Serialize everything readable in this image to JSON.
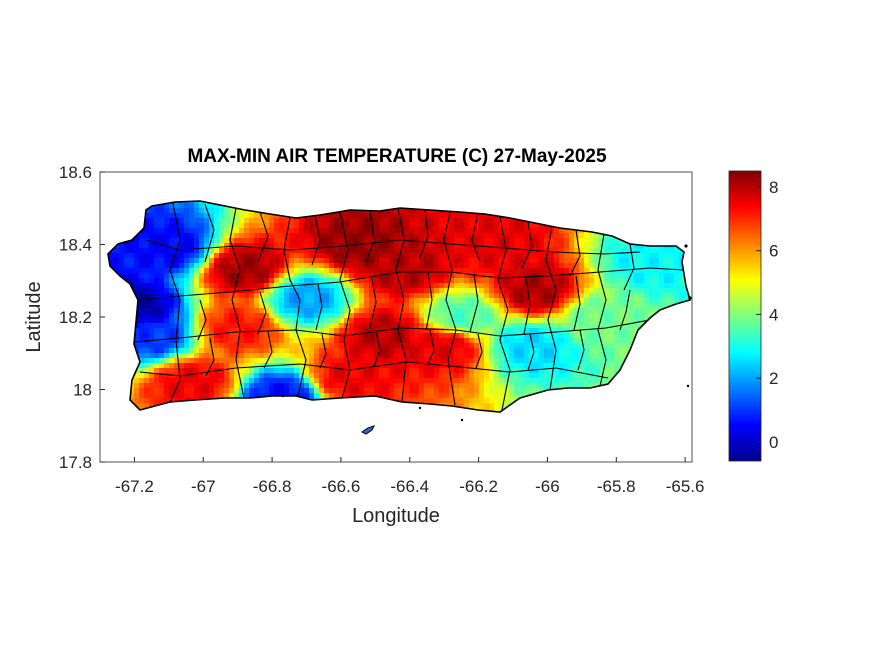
{
  "map": {
    "title": "MAX-MIN AIR TEMPERATURE (C) 27-May-2025",
    "xlabel": "Longitude",
    "ylabel": "Latitude",
    "xlim": [
      -67.3,
      -65.58
    ],
    "ylim": [
      17.8,
      18.6
    ],
    "x_ticks": [
      -67.2,
      -67.0,
      -66.8,
      -66.6,
      -66.4,
      -66.2,
      -66.0,
      -65.8,
      -65.6
    ],
    "x_tick_labels": [
      "-67.2",
      "-67",
      "-66.8",
      "-66.6",
      "-66.4",
      "-66.2",
      "-66",
      "-65.8",
      "-65.6"
    ],
    "y_ticks": [
      17.8,
      18.0,
      18.2,
      18.4,
      18.6
    ],
    "y_tick_labels": [
      "17.8",
      "18",
      "18.2",
      "18.4",
      "18.6"
    ],
    "colorbar": {
      "colormap": "jet",
      "range": [
        -0.6,
        8.5
      ],
      "ticks": [
        0,
        2,
        4,
        6,
        8
      ],
      "tick_labels": [
        "0",
        "2",
        "4",
        "6",
        "8"
      ]
    },
    "hotspots": [
      {
        "lon": -66.88,
        "lat": 18.33,
        "value": 8.2
      },
      {
        "lon": -66.55,
        "lat": 18.4,
        "value": 8.3
      },
      {
        "lon": -66.42,
        "lat": 18.33,
        "value": 8.0
      },
      {
        "lon": -66.03,
        "lat": 18.27,
        "value": 8.1
      },
      {
        "lon": -66.15,
        "lat": 18.4,
        "value": 7.6
      },
      {
        "lon": -66.47,
        "lat": 18.15,
        "value": 8.0
      },
      {
        "lon": -66.3,
        "lat": 18.12,
        "value": 7.6
      },
      {
        "lon": -66.58,
        "lat": 18.03,
        "value": 7.5
      },
      {
        "lon": -67.03,
        "lat": 18.02,
        "value": 7.5
      },
      {
        "lon": -66.9,
        "lat": 18.17,
        "value": 7.2
      },
      {
        "lon": -67.2,
        "lat": 18.22,
        "value": -0.3
      },
      {
        "lon": -67.1,
        "lat": 18.39,
        "value": 0.5
      },
      {
        "lon": -67.15,
        "lat": 18.15,
        "value": 1.0
      },
      {
        "lon": -66.77,
        "lat": 17.98,
        "value": 0.6
      },
      {
        "lon": -66.7,
        "lat": 18.25,
        "value": 2.0
      },
      {
        "lon": -66.05,
        "lat": 18.12,
        "value": 2.5
      },
      {
        "lon": -65.7,
        "lat": 18.35,
        "value": 2.8
      },
      {
        "lon": -66.25,
        "lat": 18.2,
        "value": 3.5
      },
      {
        "lon": -65.85,
        "lat": 18.2,
        "value": 3.8
      }
    ]
  }
}
